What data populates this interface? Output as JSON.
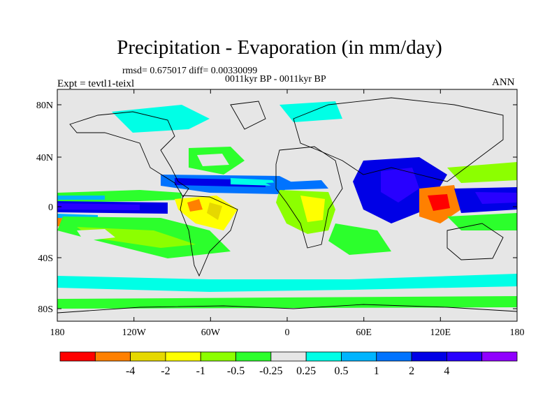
{
  "title": "Precipitation - Evaporation (in mm/day)",
  "stats": "rmsd= 0.675017 diff= 0.00330099",
  "period": "0011kyr BP - 0011kyr BP",
  "expt": "Expt = tevtl1-teixl",
  "season": "ANN",
  "lat_ticks": [
    "80N",
    "40N",
    "0",
    "40S",
    "80S"
  ],
  "lon_ticks": [
    "180",
    "120W",
    "60W",
    "0",
    "60E",
    "120E",
    "180"
  ],
  "colorbar": {
    "colors": [
      "#ff0000",
      "#ff8000",
      "#e6d800",
      "#ffff00",
      "#8cff00",
      "#2cff2c",
      "#e6e6e6",
      "#00ffe6",
      "#00b4ff",
      "#0073ff",
      "#0000e6",
      "#2800ff",
      "#9000ff"
    ],
    "labels": [
      "-4",
      "-2",
      "-1",
      "-0.5",
      "-0.25",
      "0.25",
      "0.5",
      "1",
      "2",
      "4"
    ]
  }
}
